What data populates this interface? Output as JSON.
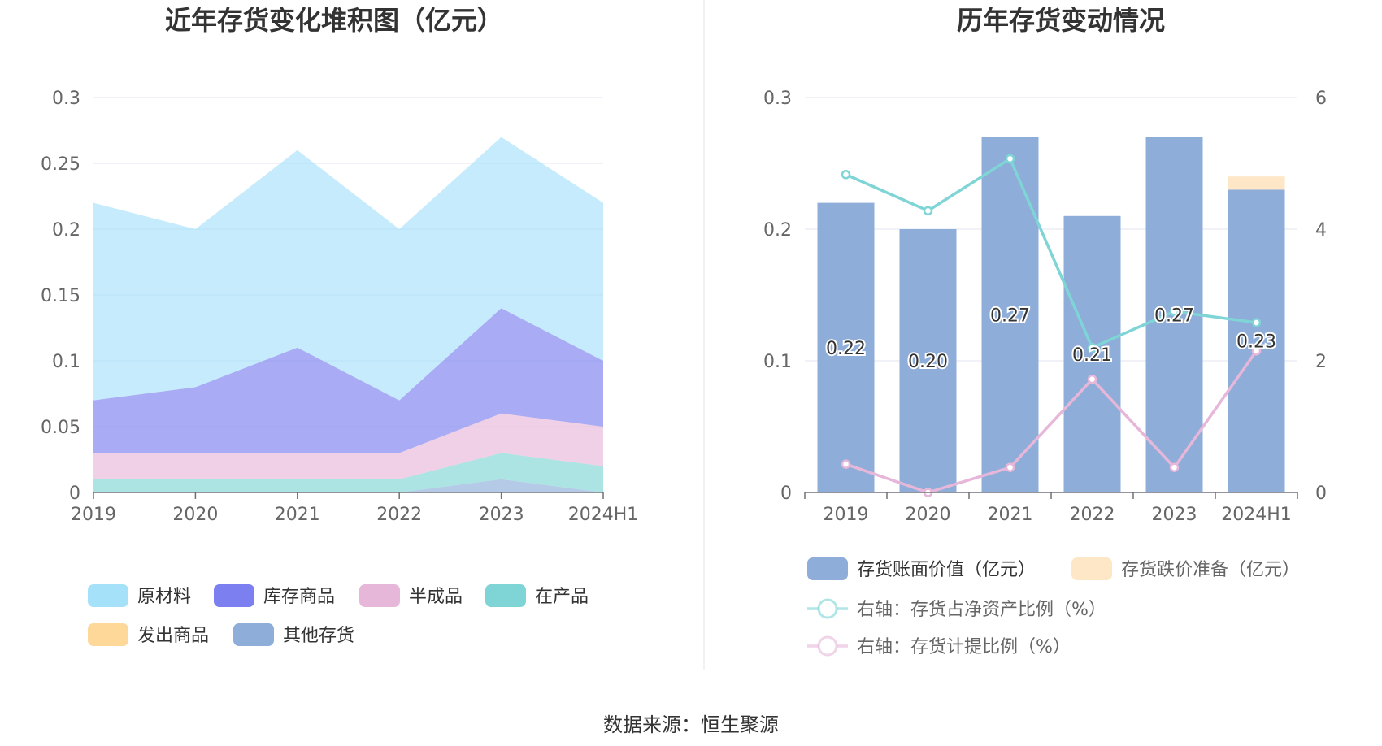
{
  "left_chart": {
    "legend": [
      {
        "name": "原材料",
        "color": "#a6e1fa"
      },
      {
        "name": "库存商品",
        "color": "#7b7ff0"
      },
      {
        "name": "半成品",
        "color": "#e6b7d9"
      },
      {
        "name": "在产品",
        "color": "#7fd5d6"
      },
      {
        "name": "发出商品",
        "color": "#fdd898"
      },
      {
        "name": "其他存货",
        "color": "#8eadd9"
      }
    ]
  },
  "right_chart": {
    "legend": [
      {
        "name": "存货账面价值（亿元）",
        "color": "#8eadd9",
        "kind": "bar"
      },
      {
        "name": "存货跌价准备（亿元）",
        "color": "#fde7c6",
        "kind": "bar"
      },
      {
        "name": "右轴：存货占净资产比例（%）",
        "color": "#7fd5d6",
        "kind": "line"
      },
      {
        "name": "右轴：存货计提比例（%）",
        "color": "#e6b7d9",
        "kind": "line"
      }
    ]
  },
  "chart_data": [
    {
      "type": "area",
      "title": "近年存货变化堆积图（亿元）",
      "categories": [
        "2019",
        "2020",
        "2021",
        "2022",
        "2023",
        "2024H1"
      ],
      "stacked": true,
      "ylim": [
        0,
        0.3
      ],
      "yticks": [
        "0",
        "0.05",
        "0.1",
        "0.15",
        "0.2",
        "0.25",
        "0.3"
      ],
      "grid": true,
      "legend_position": "bottom",
      "series": [
        {
          "name": "其他存货",
          "color": "#8eadd9",
          "values": [
            0,
            0,
            0,
            0,
            0.01,
            0
          ]
        },
        {
          "name": "在产品",
          "color": "#7fd5d6",
          "values": [
            0.01,
            0.01,
            0.01,
            0.01,
            0.02,
            0.02
          ]
        },
        {
          "name": "半成品",
          "color": "#e6b7d9",
          "values": [
            0.02,
            0.02,
            0.02,
            0.02,
            0.03,
            0.03
          ]
        },
        {
          "name": "库存商品",
          "color": "#7b7ff0",
          "values": [
            0.04,
            0.05,
            0.08,
            0.04,
            0.08,
            0.05
          ]
        },
        {
          "name": "原材料",
          "color": "#a6e1fa",
          "values": [
            0.15,
            0.12,
            0.15,
            0.13,
            0.13,
            0.12
          ]
        },
        {
          "name": "发出商品",
          "color": "#fdd898",
          "values": [
            0,
            0,
            0,
            0,
            0,
            0
          ]
        }
      ]
    },
    {
      "type": "bar",
      "title": "历年存货变动情况",
      "categories": [
        "2019",
        "2020",
        "2021",
        "2022",
        "2023",
        "2024H1"
      ],
      "ylim": [
        0,
        0.3
      ],
      "yticks": [
        "0",
        "0.1",
        "0.2",
        "0.3"
      ],
      "y2lim": [
        0,
        6
      ],
      "y2ticks": [
        "0",
        "2",
        "4",
        "6"
      ],
      "grid": true,
      "legend_position": "bottom",
      "series": [
        {
          "name": "存货账面价值（亿元）",
          "type": "bar",
          "stack": "inv",
          "color": "#8eadd9",
          "values": [
            0.22,
            0.2,
            0.27,
            0.21,
            0.27,
            0.23
          ],
          "labels": [
            "0.22",
            "0.20",
            "0.27",
            "0.21",
            "0.27",
            "0.23"
          ]
        },
        {
          "name": "存货跌价准备（亿元）",
          "type": "bar",
          "stack": "inv",
          "color": "#fde7c6",
          "values": [
            0,
            0,
            0,
            0,
            0,
            0.01
          ]
        },
        {
          "name": "右轴：存货占净资产比例（%）",
          "type": "line",
          "axis": "right",
          "color": "#7fd5d6",
          "values": [
            4.83,
            4.28,
            5.07,
            2.2,
            2.75,
            2.58
          ]
        },
        {
          "name": "右轴：存货计提比例（%）",
          "type": "line",
          "axis": "right",
          "color": "#e6b7d9",
          "values": [
            0.43,
            0.0,
            0.38,
            1.72,
            0.38,
            2.15
          ]
        }
      ]
    }
  ],
  "footer": {
    "source": "数据来源：恒生聚源"
  }
}
